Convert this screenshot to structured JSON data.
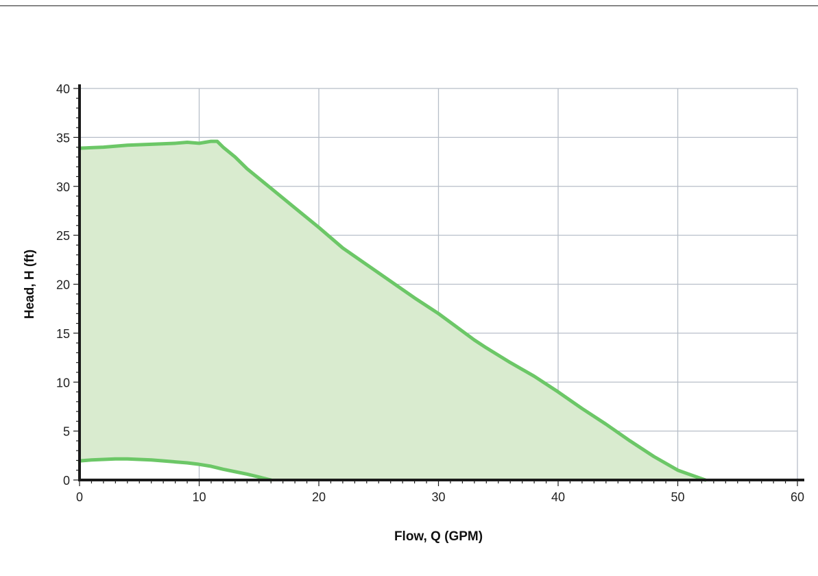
{
  "colors": {
    "grid": "#b7bec8",
    "axis": "#1a1a1a",
    "curve": "#6cc767",
    "fill": "#d9ebcf"
  },
  "chart_data": {
    "type": "area",
    "title": "",
    "xlabel": "Flow, Q (GPM)",
    "ylabel": "Head, H (ft)",
    "xlim": [
      0,
      60
    ],
    "ylim": [
      0,
      40
    ],
    "xticks": [
      0,
      10,
      20,
      30,
      40,
      50,
      60
    ],
    "yticks": [
      0,
      5,
      10,
      15,
      20,
      25,
      30,
      35,
      40
    ],
    "xtick_labels": [
      "0",
      "10",
      "20",
      "30",
      "40",
      "50",
      "60"
    ],
    "ytick_labels": [
      "0",
      "5",
      "10",
      "15",
      "20",
      "25",
      "30",
      "35",
      "40"
    ],
    "grid": true,
    "legend": "none",
    "series": [
      {
        "x": [
          0,
          2,
          4,
          6,
          8,
          9,
          10,
          10.5,
          11,
          11.5,
          12,
          13,
          14,
          15,
          16,
          18,
          20,
          22,
          24,
          26,
          28,
          30,
          32,
          33,
          34,
          36,
          38,
          40,
          42,
          44,
          46,
          48,
          50,
          52.3
        ],
        "y": [
          33.9,
          34.0,
          34.2,
          34.3,
          34.4,
          34.5,
          34.4,
          34.5,
          34.6,
          34.6,
          34.0,
          33.0,
          31.8,
          30.8,
          29.8,
          27.8,
          25.8,
          23.7,
          22.0,
          20.3,
          18.6,
          17.0,
          15.2,
          14.3,
          13.5,
          12.0,
          10.6,
          9.0,
          7.3,
          5.7,
          4.0,
          2.4,
          1.0,
          0
        ]
      },
      {
        "x": [
          0,
          1,
          2,
          3,
          4,
          5,
          6,
          7,
          8,
          9,
          10,
          11,
          12,
          13,
          14,
          15,
          16
        ],
        "y": [
          1.95,
          2.05,
          2.1,
          2.15,
          2.15,
          2.1,
          2.05,
          1.95,
          1.85,
          1.75,
          1.6,
          1.4,
          1.1,
          0.85,
          0.6,
          0.3,
          0
        ]
      }
    ]
  }
}
